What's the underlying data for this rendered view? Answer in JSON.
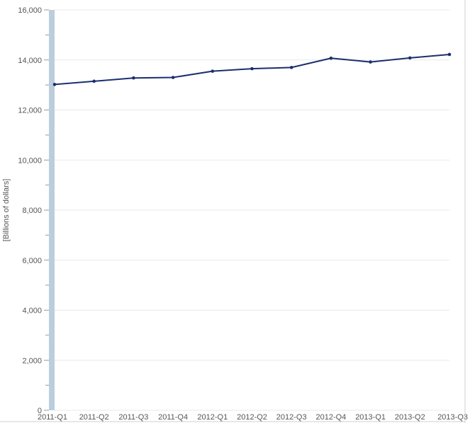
{
  "chart_data": {
    "type": "line",
    "title": "",
    "xlabel": "",
    "ylabel": "[Billions of dollars]",
    "categories": [
      "2011-Q1",
      "2011-Q2",
      "2011-Q3",
      "2011-Q4",
      "2012-Q1",
      "2012-Q2",
      "2012-Q3",
      "2012-Q4",
      "2013-Q1",
      "2013-Q2",
      "2013-Q3"
    ],
    "series": [
      {
        "values": [
          13020,
          13150,
          13280,
          13300,
          13550,
          13650,
          13700,
          14070,
          13920,
          14080,
          14220
        ]
      }
    ],
    "ylim": [
      0,
      16000
    ],
    "yticks": [
      0,
      2000,
      4000,
      6000,
      8000,
      10000,
      12000,
      14000,
      16000
    ],
    "ytick_labels": [
      "0",
      "2,000",
      "4,000",
      "6,000",
      "8,000",
      "10,000",
      "12,000",
      "14,000",
      "16,000"
    ],
    "grid": true,
    "colors": {
      "line": "#1b2f6e",
      "axis_band": "#bccddd",
      "grid": "#e8e8e8"
    }
  }
}
